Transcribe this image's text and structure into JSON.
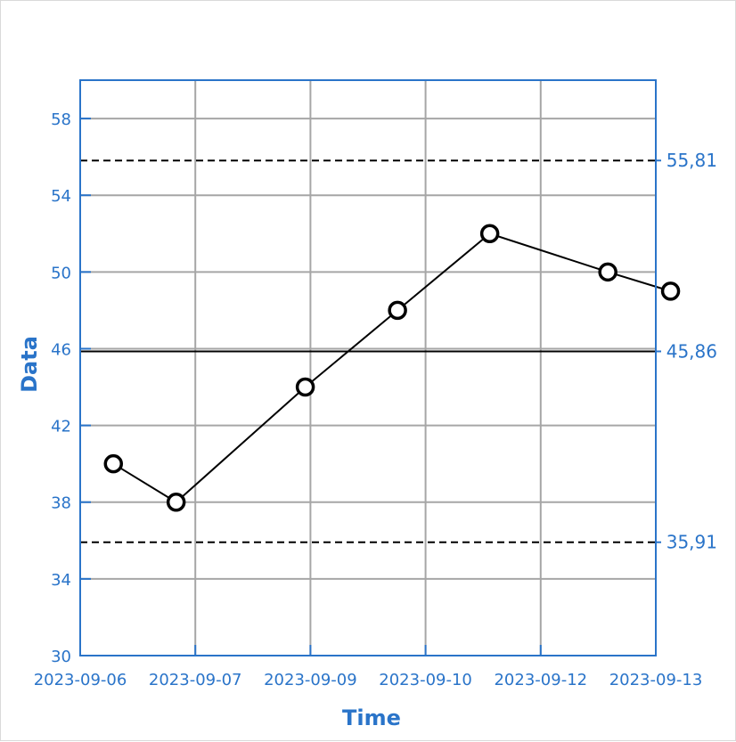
{
  "chart_data": {
    "type": "line",
    "title": "",
    "xlabel": "Time",
    "ylabel": "Data",
    "x_tick_labels": [
      "2023-09-06",
      "2023-09-07",
      "2023-09-09",
      "2023-09-10",
      "2023-09-12",
      "2023-09-13"
    ],
    "y_ticks": [
      30,
      34,
      38,
      42,
      46,
      50,
      54,
      58
    ],
    "ylim": [
      30,
      60
    ],
    "grid": true,
    "series": [
      {
        "points": [
          {
            "x": "2023-09-06 09:00",
            "y": 40
          },
          {
            "x": "2023-09-07 02:00",
            "y": 38
          },
          {
            "x": "2023-09-08 13:00",
            "y": 44
          },
          {
            "x": "2023-09-09 14:00",
            "y": 48
          },
          {
            "x": "2023-09-10 15:00",
            "y": 52
          },
          {
            "x": "2023-09-11 23:00",
            "y": 50
          },
          {
            "x": "2023-09-12 16:00",
            "y": 49
          }
        ]
      }
    ],
    "reference_lines": [
      {
        "label": "55,81",
        "y": 55.81,
        "style": "dashed"
      },
      {
        "label": "45,86",
        "y": 45.86,
        "style": "solid"
      },
      {
        "label": "35,91",
        "y": 35.91,
        "style": "dashed"
      }
    ],
    "colors": {
      "axis": "#2a74c9",
      "grid": "#a6a6a6",
      "line": "#000000"
    }
  }
}
